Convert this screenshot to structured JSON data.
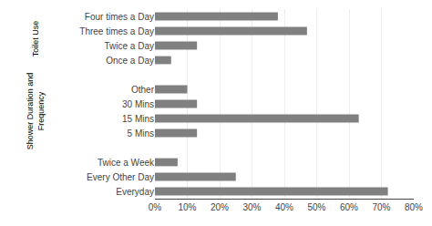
{
  "chart_data": {
    "type": "bar",
    "orientation": "horizontal",
    "categories": [
      "Four times a Day",
      "Three times a Day",
      "Twice a Day",
      "Once a Day",
      null,
      "Other",
      "30 Mins",
      "15 Mins",
      "5 Mins",
      null,
      "Twice a Week",
      "Every Other Day",
      "Everyday"
    ],
    "values": [
      38,
      47,
      13,
      5,
      null,
      10,
      13,
      63,
      13,
      null,
      7,
      25,
      72
    ],
    "color": "#808080",
    "xlim": [
      0,
      80
    ],
    "xticks": [
      {
        "value": 0,
        "label": "0%"
      },
      {
        "value": 10,
        "label": "10%"
      },
      {
        "value": 20,
        "label": "20%"
      },
      {
        "value": 30,
        "label": "30%"
      },
      {
        "value": 40,
        "label": "40%"
      },
      {
        "value": 50,
        "label": "50%"
      },
      {
        "value": 60,
        "label": "60%"
      },
      {
        "value": 70,
        "label": "70%"
      },
      {
        "value": 80,
        "label": "80%"
      }
    ],
    "grid": true,
    "annotations": [
      {
        "text": "Toilet Use",
        "from": "Four times a Day",
        "to": "Once a Day"
      },
      {
        "text": "Shower Duration and\nFrequency",
        "from": "Other",
        "to": "5 Mins"
      }
    ]
  }
}
